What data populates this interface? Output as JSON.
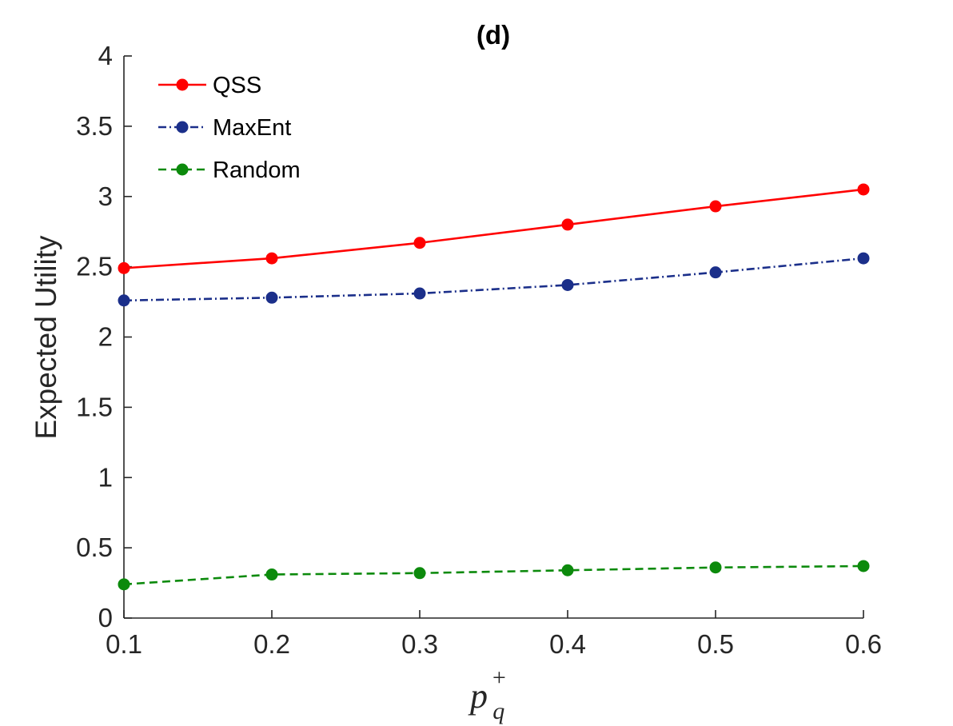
{
  "chart_data": {
    "type": "line",
    "title": "(d)",
    "xlabel": {
      "base": "p",
      "sup": "+",
      "sub": "q"
    },
    "ylabel": "Expected Utility",
    "x": [
      0.1,
      0.2,
      0.3,
      0.4,
      0.5,
      0.6
    ],
    "xticks": [
      "0.1",
      "0.2",
      "0.3",
      "0.4",
      "0.5",
      "0.6"
    ],
    "yticks": [
      "0",
      "0.5",
      "1",
      "1.5",
      "2",
      "2.5",
      "3",
      "3.5",
      "4"
    ],
    "xlim": [
      0.1,
      0.6
    ],
    "ylim": [
      0,
      4
    ],
    "legend_position": "top-left",
    "series": [
      {
        "name": "QSS",
        "color": "#ff0000",
        "dash": "solid",
        "values": [
          2.49,
          2.56,
          2.67,
          2.8,
          2.93,
          3.05
        ]
      },
      {
        "name": "MaxEnt",
        "color": "#1b2f8a",
        "dash": "dashdot",
        "values": [
          2.26,
          2.28,
          2.31,
          2.37,
          2.46,
          2.56
        ]
      },
      {
        "name": "Random",
        "color": "#0c8a0c",
        "dash": "dashed",
        "values": [
          0.24,
          0.31,
          0.32,
          0.34,
          0.36,
          0.37
        ]
      }
    ]
  }
}
